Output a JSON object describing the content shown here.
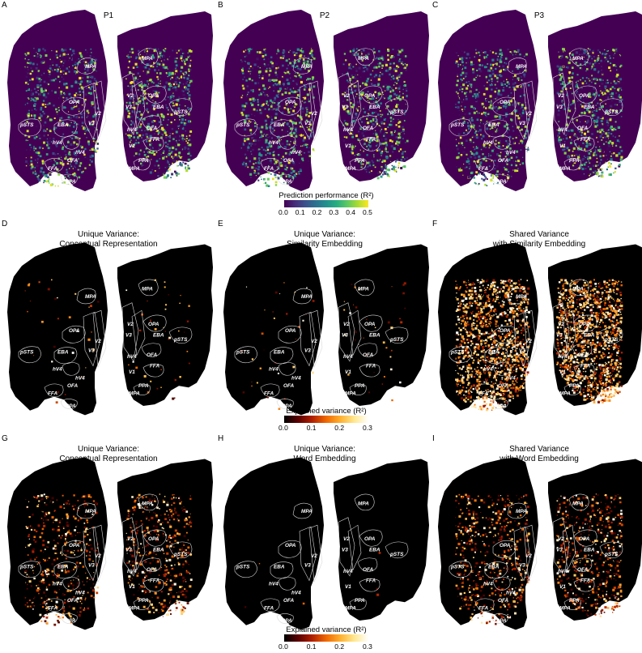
{
  "panels": [
    {
      "letter": "A",
      "title_lines": [
        "P1"
      ],
      "style": "pred"
    },
    {
      "letter": "B",
      "title_lines": [
        "P2"
      ],
      "style": "pred"
    },
    {
      "letter": "C",
      "title_lines": [
        "P3"
      ],
      "style": "pred"
    },
    {
      "letter": "D",
      "title_lines": [
        "Unique Variance:",
        "Conceptual Representation"
      ],
      "style": "sparse"
    },
    {
      "letter": "E",
      "title_lines": [
        "Unique Variance:",
        "Similarity Embedding"
      ],
      "style": "sparse"
    },
    {
      "letter": "F",
      "title_lines": [
        "Shared Variance",
        "with Similarity Embedding"
      ],
      "style": "dense"
    },
    {
      "letter": "G",
      "title_lines": [
        "Unique Variance:",
        "Conceptual Representation"
      ],
      "style": "medium"
    },
    {
      "letter": "H",
      "title_lines": [
        "Unique Variance:",
        "Word Embedding"
      ],
      "style": "empty"
    },
    {
      "letter": "I",
      "title_lines": [
        "Shared Variance",
        "with Word Embedding"
      ],
      "style": "medium2"
    }
  ],
  "roi_labels": [
    "MPA",
    "OPA",
    "pSTS",
    "EBA",
    "V3",
    "V2",
    "V1",
    "hV4",
    "OFA",
    "FFA",
    "PPA"
  ],
  "colorbars": [
    {
      "title": "Prediction performance (R²)",
      "ticks": [
        "0.0",
        "0.1",
        "0.2",
        "0.3",
        "0.4",
        "0.5"
      ],
      "colormap": "viridis"
    },
    {
      "title": "Explained variance (R²)",
      "ticks": [
        "0.0",
        "0.1",
        "0.2",
        "0.3"
      ],
      "colormap": "afmhot"
    },
    {
      "title": "Explained variance (R²)",
      "ticks": [
        "0.0",
        "0.1",
        "0.2",
        "0.3"
      ],
      "colormap": "afmhot"
    }
  ],
  "colors": {
    "pred_background": "#440154",
    "var_background": "#000000",
    "roi_outline": "#d8d8d8"
  }
}
